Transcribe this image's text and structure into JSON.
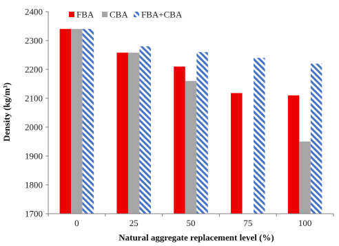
{
  "chart_data": {
    "type": "bar",
    "xlabel": "Natural aggregate replacement level (%)",
    "ylabel": "Density (kg/m³)",
    "ylim": [
      1700,
      2400
    ],
    "yticks": [
      "1700",
      "1800",
      "1900",
      "2000",
      "2100",
      "2200",
      "2300",
      "2400"
    ],
    "categories": [
      "0",
      "25",
      "50",
      "75",
      "100"
    ],
    "legend_position": "top-left",
    "grid": false,
    "series": [
      {
        "name": "FBA",
        "color": "#ee0000",
        "pattern": "solid",
        "values": [
          2340,
          2258,
          2210,
          2118,
          2110
        ]
      },
      {
        "name": "CBA",
        "color": "#a6a6a6",
        "pattern": "solid",
        "values": [
          2340,
          2258,
          2160,
          null,
          1950
        ]
      },
      {
        "name": "FBA+CBA",
        "color": "#4472c4",
        "pattern": "diagonal-stripes",
        "values": [
          2340,
          2280,
          2260,
          2240,
          2220
        ]
      }
    ]
  }
}
